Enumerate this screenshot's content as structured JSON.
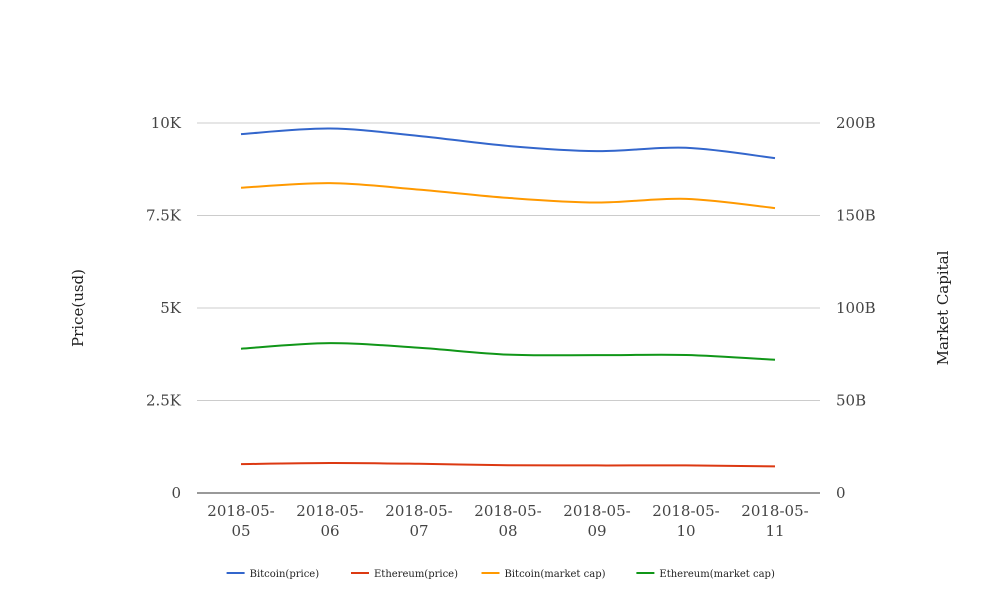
{
  "chart_data": {
    "type": "line",
    "title": "",
    "categories": [
      "2018-05-05",
      "2018-05-06",
      "2018-05-07",
      "2018-05-08",
      "2018-05-09",
      "2018-05-10",
      "2018-05-11"
    ],
    "category_lines": [
      [
        "2018-05-",
        "05"
      ],
      [
        "2018-05-",
        "06"
      ],
      [
        "2018-05-",
        "07"
      ],
      [
        "2018-05-",
        "08"
      ],
      [
        "2018-05-",
        "09"
      ],
      [
        "2018-05-",
        "10"
      ],
      [
        "2018-05-",
        "11"
      ]
    ],
    "y_left": {
      "label": "Price(usd)",
      "range": [
        0,
        10000
      ],
      "ticks": [
        0,
        2500,
        5000,
        7500,
        10000
      ],
      "tick_labels": [
        "0",
        "2.5K",
        "5K",
        "7.5K",
        "10K"
      ]
    },
    "y_right": {
      "label": "Market Capital",
      "range": [
        0,
        200000000000
      ],
      "ticks": [
        0,
        50000000000,
        100000000000,
        150000000000,
        200000000000
      ],
      "tick_labels": [
        "0",
        "50B",
        "100B",
        "150B",
        "200B"
      ]
    },
    "grid": true,
    "legend_position": "bottom",
    "series": [
      {
        "name": "Bitcoin(price)",
        "axis": "left",
        "color": "#3366cc",
        "values": [
          9700,
          9850,
          9650,
          9380,
          9240,
          9330,
          9050
        ]
      },
      {
        "name": "Ethereum(price)",
        "axis": "left",
        "color": "#dc3912",
        "values": [
          780,
          810,
          790,
          750,
          745,
          745,
          720
        ]
      },
      {
        "name": "Bitcoin(market cap)",
        "axis": "right",
        "color": "#ff9900",
        "values": [
          165000000000,
          167500000000,
          164000000000,
          159500000000,
          157000000000,
          159000000000,
          154000000000
        ]
      },
      {
        "name": "Ethereum(market cap)",
        "axis": "right",
        "color": "#109618",
        "values": [
          78000000000,
          81000000000,
          78500000000,
          74800000000,
          74500000000,
          74600000000,
          72000000000
        ]
      }
    ]
  }
}
